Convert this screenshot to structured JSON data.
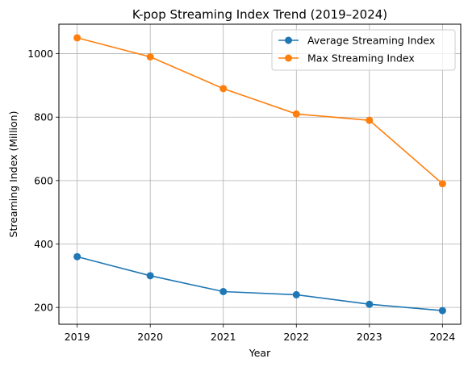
{
  "chart_data": {
    "type": "line",
    "title": "K-pop Streaming Index Trend (2019–2024)",
    "xlabel": "Year",
    "ylabel": "Streaming Index (Million)",
    "x": [
      "2019",
      "2020",
      "2021",
      "2022",
      "2023",
      "2024"
    ],
    "xlim": [
      2018.75,
      2024.25
    ],
    "ylim": [
      147,
      1093
    ],
    "yticks": [
      200,
      400,
      600,
      800,
      1000
    ],
    "grid": true,
    "legend_position": "upper right",
    "series": [
      {
        "name": "Average Streaming Index",
        "color": "#1f77b4",
        "values": [
          360,
          300,
          250,
          240,
          210,
          190
        ]
      },
      {
        "name": "Max Streaming Index",
        "color": "#ff7f0e",
        "values": [
          1050,
          990,
          890,
          810,
          790,
          590
        ]
      }
    ]
  }
}
